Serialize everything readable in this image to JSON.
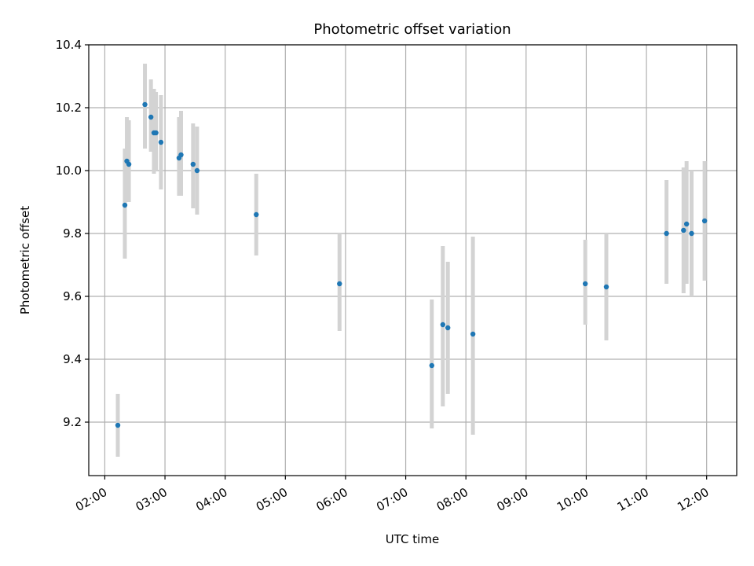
{
  "chart_data": {
    "type": "scatter",
    "title": "Photometric offset variation",
    "xlabel": "UTC time",
    "ylabel": "Photometric offset",
    "xlim": [
      "01:44",
      "12:30"
    ],
    "ylim": [
      9.03,
      10.4
    ],
    "grid": true,
    "x_ticks": [
      "02:00",
      "03:00",
      "04:00",
      "05:00",
      "06:00",
      "07:00",
      "08:00",
      "09:00",
      "10:00",
      "11:00",
      "12:00"
    ],
    "y_ticks": [
      9.2,
      9.4,
      9.6,
      9.8,
      10.0,
      10.2,
      10.4
    ],
    "y_tick_labels": [
      "9.2",
      "9.4",
      "9.6",
      "9.8",
      "10.0",
      "10.2",
      "10.4"
    ],
    "marker_color": "#1f77b4",
    "errorbar_color": "#d3d3d3",
    "points": [
      {
        "t": "02:13",
        "y": 9.19,
        "lo": 9.09,
        "hi": 9.29
      },
      {
        "t": "02:20",
        "y": 9.89,
        "lo": 9.72,
        "hi": 10.07
      },
      {
        "t": "02:22",
        "y": 10.03,
        "lo": 9.9,
        "hi": 10.17
      },
      {
        "t": "02:24",
        "y": 10.02,
        "lo": 9.9,
        "hi": 10.16
      },
      {
        "t": "02:40",
        "y": 10.21,
        "lo": 10.07,
        "hi": 10.34
      },
      {
        "t": "02:46",
        "y": 10.17,
        "lo": 10.06,
        "hi": 10.29
      },
      {
        "t": "02:49",
        "y": 10.12,
        "lo": 9.99,
        "hi": 10.26
      },
      {
        "t": "02:51",
        "y": 10.12,
        "lo": 10.0,
        "hi": 10.25
      },
      {
        "t": "02:56",
        "y": 10.09,
        "lo": 9.94,
        "hi": 10.24
      },
      {
        "t": "03:14",
        "y": 10.04,
        "lo": 9.92,
        "hi": 10.17
      },
      {
        "t": "03:16",
        "y": 10.05,
        "lo": 9.92,
        "hi": 10.19
      },
      {
        "t": "03:28",
        "y": 10.02,
        "lo": 9.88,
        "hi": 10.15
      },
      {
        "t": "03:32",
        "y": 10.0,
        "lo": 9.86,
        "hi": 10.14
      },
      {
        "t": "04:31",
        "y": 9.86,
        "lo": 9.73,
        "hi": 9.99
      },
      {
        "t": "05:54",
        "y": 9.64,
        "lo": 9.49,
        "hi": 9.8
      },
      {
        "t": "07:26",
        "y": 9.38,
        "lo": 9.18,
        "hi": 9.59
      },
      {
        "t": "07:37",
        "y": 9.51,
        "lo": 9.25,
        "hi": 9.76
      },
      {
        "t": "07:42",
        "y": 9.5,
        "lo": 9.29,
        "hi": 9.71
      },
      {
        "t": "08:07",
        "y": 9.48,
        "lo": 9.16,
        "hi": 9.79
      },
      {
        "t": "09:59",
        "y": 9.64,
        "lo": 9.51,
        "hi": 9.78
      },
      {
        "t": "10:20",
        "y": 9.63,
        "lo": 9.46,
        "hi": 9.8
      },
      {
        "t": "11:20",
        "y": 9.8,
        "lo": 9.64,
        "hi": 9.97
      },
      {
        "t": "11:37",
        "y": 9.81,
        "lo": 9.61,
        "hi": 10.01
      },
      {
        "t": "11:40",
        "y": 9.83,
        "lo": 9.64,
        "hi": 10.03
      },
      {
        "t": "11:45",
        "y": 9.8,
        "lo": 9.6,
        "hi": 10.0
      },
      {
        "t": "11:58",
        "y": 9.84,
        "lo": 9.65,
        "hi": 10.03
      }
    ]
  }
}
